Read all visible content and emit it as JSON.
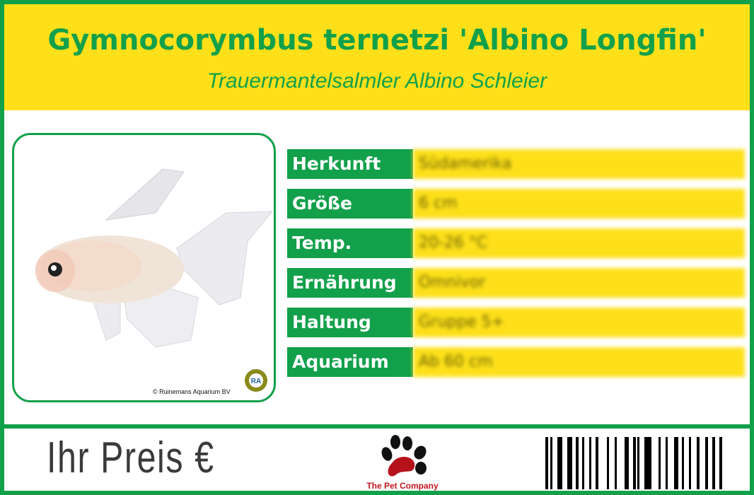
{
  "header": {
    "title": "Gymnocorymbus ternetzi 'Albino Longfin'",
    "subtitle": "Trauermantelsalmler Albino Schleier"
  },
  "photo": {
    "copyright": "© Ruinemans Aquarium BV",
    "logo_text": "RA"
  },
  "rows": [
    {
      "label": "Herkunft",
      "value": "Südamerika"
    },
    {
      "label": "Größe",
      "value": "6 cm"
    },
    {
      "label": "Temp.",
      "value": "20-26 °C"
    },
    {
      "label": "Ernährung",
      "value": "Omnivor"
    },
    {
      "label": "Haltung",
      "value": "Gruppe 5+"
    },
    {
      "label": "Aquarium",
      "value": "Ab 60 cm"
    }
  ],
  "footer": {
    "price_label": "Ihr Preis €",
    "brand": "The Pet Company"
  },
  "colors": {
    "green": "#12a04a",
    "yellow": "#fde01a",
    "brand_red": "#c0161d"
  }
}
